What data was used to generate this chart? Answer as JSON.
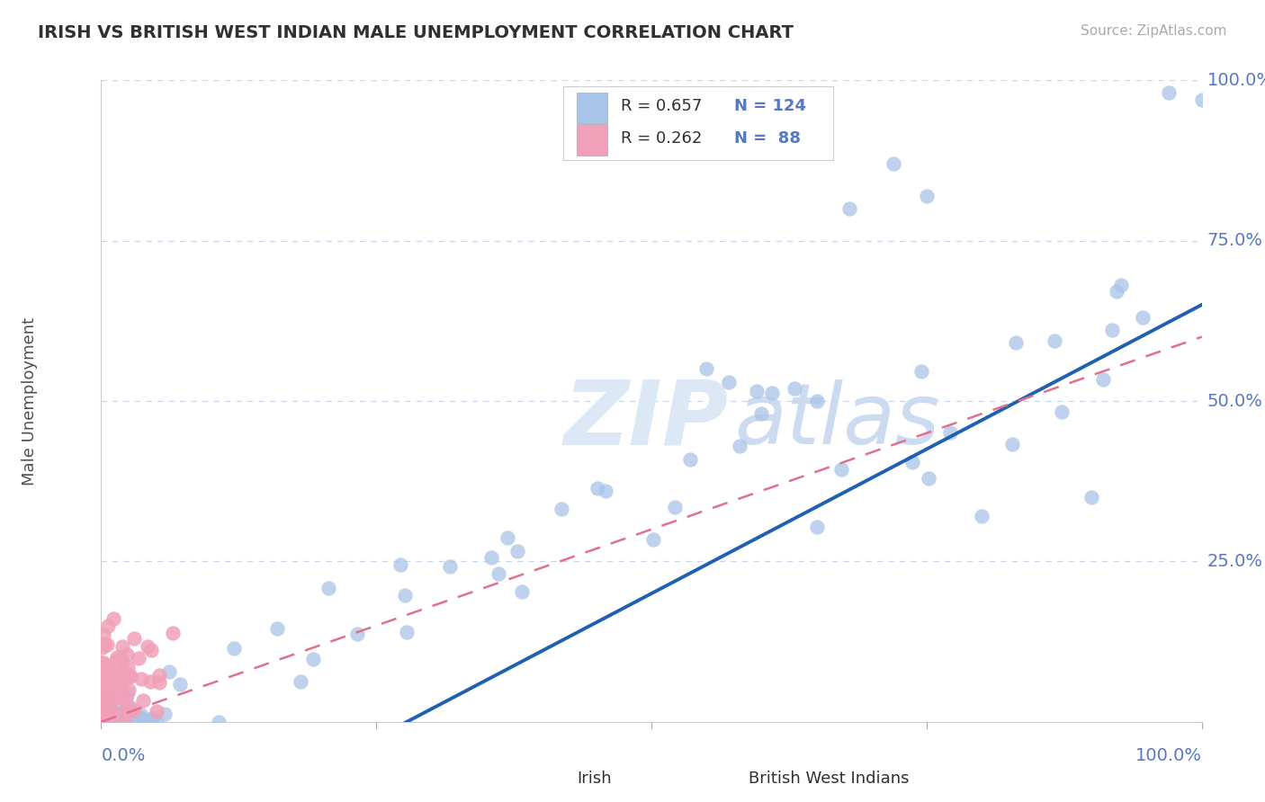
{
  "title": "IRISH VS BRITISH WEST INDIAN MALE UNEMPLOYMENT CORRELATION CHART",
  "source_text": "Source: ZipAtlas.com",
  "ylabel": "Male Unemployment",
  "xlabel": "",
  "y_tick_labels": [
    "25.0%",
    "50.0%",
    "75.0%",
    "100.0%"
  ],
  "x_tick_label_left": "0.0%",
  "x_tick_label_right": "100.0%",
  "legend_R_irish": "R = 0.657",
  "legend_N_irish": "N = 124",
  "legend_R_bwi": "R = 0.262",
  "legend_N_bwi": "N =  88",
  "irish_color": "#a8c4e8",
  "bwi_color": "#f0a0b8",
  "irish_line_color": "#2060b0",
  "bwi_line_color": "#e07090",
  "background_color": "#ffffff",
  "grid_color": "#c8d4e8",
  "title_color": "#303030",
  "axis_label_color": "#5878c0",
  "tick_color": "#5878c0",
  "watermark_color": "#dce8f5"
}
